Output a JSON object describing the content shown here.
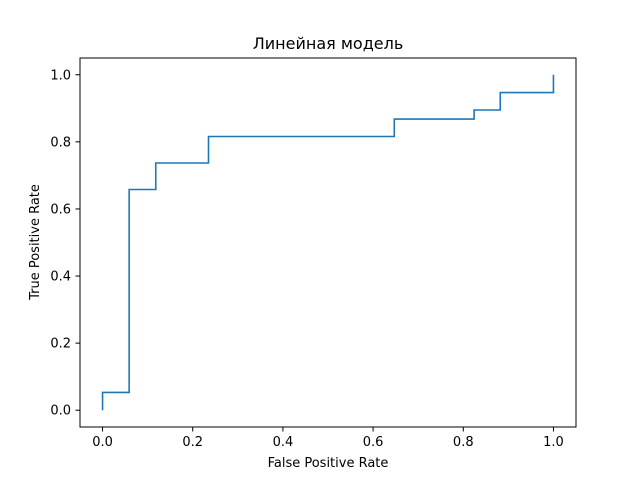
{
  "chart_data": {
    "type": "line",
    "title": "Линейная модель",
    "xlabel": "False Positive Rate",
    "ylabel": "True Positive Rate",
    "xlim": [
      -0.05,
      1.05
    ],
    "ylim": [
      -0.05,
      1.05
    ],
    "grid": false,
    "step": true,
    "x_ticks": [
      "0.0",
      "0.2",
      "0.4",
      "0.6",
      "0.8",
      "1.0"
    ],
    "y_ticks": [
      "0.0",
      "0.2",
      "0.4",
      "0.6",
      "0.8",
      "1.0"
    ],
    "series": [
      {
        "color": "#1f77b4",
        "x": [
          0.0,
          0.0,
          0.059,
          0.059,
          0.118,
          0.118,
          0.235,
          0.235,
          0.647,
          0.647,
          0.824,
          0.824,
          0.882,
          0.882,
          1.0,
          1.0
        ],
        "y": [
          0.0,
          0.053,
          0.053,
          0.658,
          0.658,
          0.737,
          0.737,
          0.816,
          0.816,
          0.868,
          0.868,
          0.895,
          0.895,
          0.947,
          0.947,
          1.0
        ]
      }
    ]
  }
}
